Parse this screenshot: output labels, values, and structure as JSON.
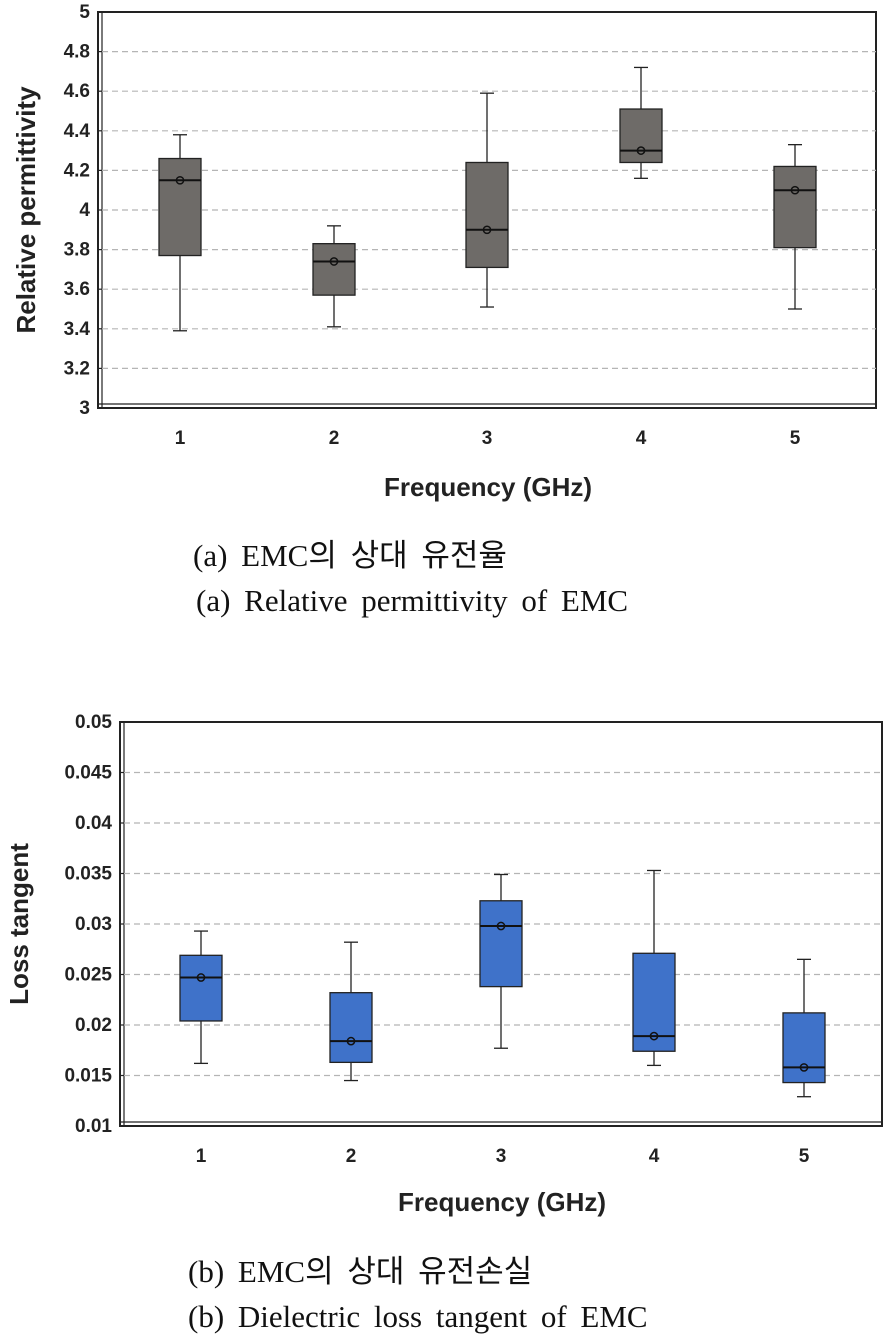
{
  "chart_data": [
    {
      "type": "box",
      "xlabel": "Frequency (GHz)",
      "ylabel": "Relative permittivity",
      "categories": [
        "1",
        "2",
        "3",
        "4",
        "5"
      ],
      "yticks": [
        "3",
        "3.2",
        "3.4",
        "3.6",
        "3.8",
        "4",
        "4.2",
        "4.4",
        "4.6",
        "4.8",
        "5"
      ],
      "ylim": [
        3,
        5
      ],
      "grid": true,
      "box_color": "#6e6b68",
      "boxes": [
        {
          "min": 3.39,
          "q1": 3.77,
          "median": 4.15,
          "q3": 4.26,
          "max": 4.38,
          "mean": 4.15
        },
        {
          "min": 3.41,
          "q1": 3.57,
          "median": 3.74,
          "q3": 3.83,
          "max": 3.92,
          "mean": 3.74
        },
        {
          "min": 3.51,
          "q1": 3.71,
          "median": 3.9,
          "q3": 4.24,
          "max": 4.59,
          "mean": 3.9
        },
        {
          "min": 4.16,
          "q1": 4.24,
          "median": 4.3,
          "q3": 4.51,
          "max": 4.72,
          "mean": 4.3
        },
        {
          "min": 3.5,
          "q1": 3.81,
          "median": 4.1,
          "q3": 4.22,
          "max": 4.33,
          "mean": 4.1
        }
      ]
    },
    {
      "type": "box",
      "xlabel": "Frequency (GHz)",
      "ylabel": "Loss tangent",
      "categories": [
        "1",
        "2",
        "3",
        "4",
        "5"
      ],
      "yticks": [
        "0.01",
        "0.015",
        "0.02",
        "0.025",
        "0.03",
        "0.035",
        "0.04",
        "0.045",
        "0.05"
      ],
      "ylim": [
        0.01,
        0.05
      ],
      "grid": true,
      "box_color": "#3f72c9",
      "boxes": [
        {
          "min": 0.0162,
          "q1": 0.0204,
          "median": 0.0247,
          "q3": 0.0269,
          "max": 0.0293,
          "mean": 0.0247
        },
        {
          "min": 0.0145,
          "q1": 0.0163,
          "median": 0.0184,
          "q3": 0.0232,
          "max": 0.0282,
          "mean": 0.0184
        },
        {
          "min": 0.0177,
          "q1": 0.0238,
          "median": 0.0298,
          "q3": 0.0323,
          "max": 0.0349,
          "mean": 0.0298
        },
        {
          "min": 0.016,
          "q1": 0.0174,
          "median": 0.0189,
          "q3": 0.0271,
          "max": 0.0353,
          "mean": 0.0189
        },
        {
          "min": 0.0129,
          "q1": 0.0143,
          "median": 0.0158,
          "q3": 0.0212,
          "max": 0.0265,
          "mean": 0.0158
        }
      ]
    }
  ],
  "captions": {
    "a_korean": "(a) EMC의 상대 유전율",
    "a_english": "(a) Relative permittivity of EMC",
    "b_korean": "(b) EMC의 상대 유전손실",
    "b_english": "(b) Dielectric loss tangent of EMC"
  }
}
